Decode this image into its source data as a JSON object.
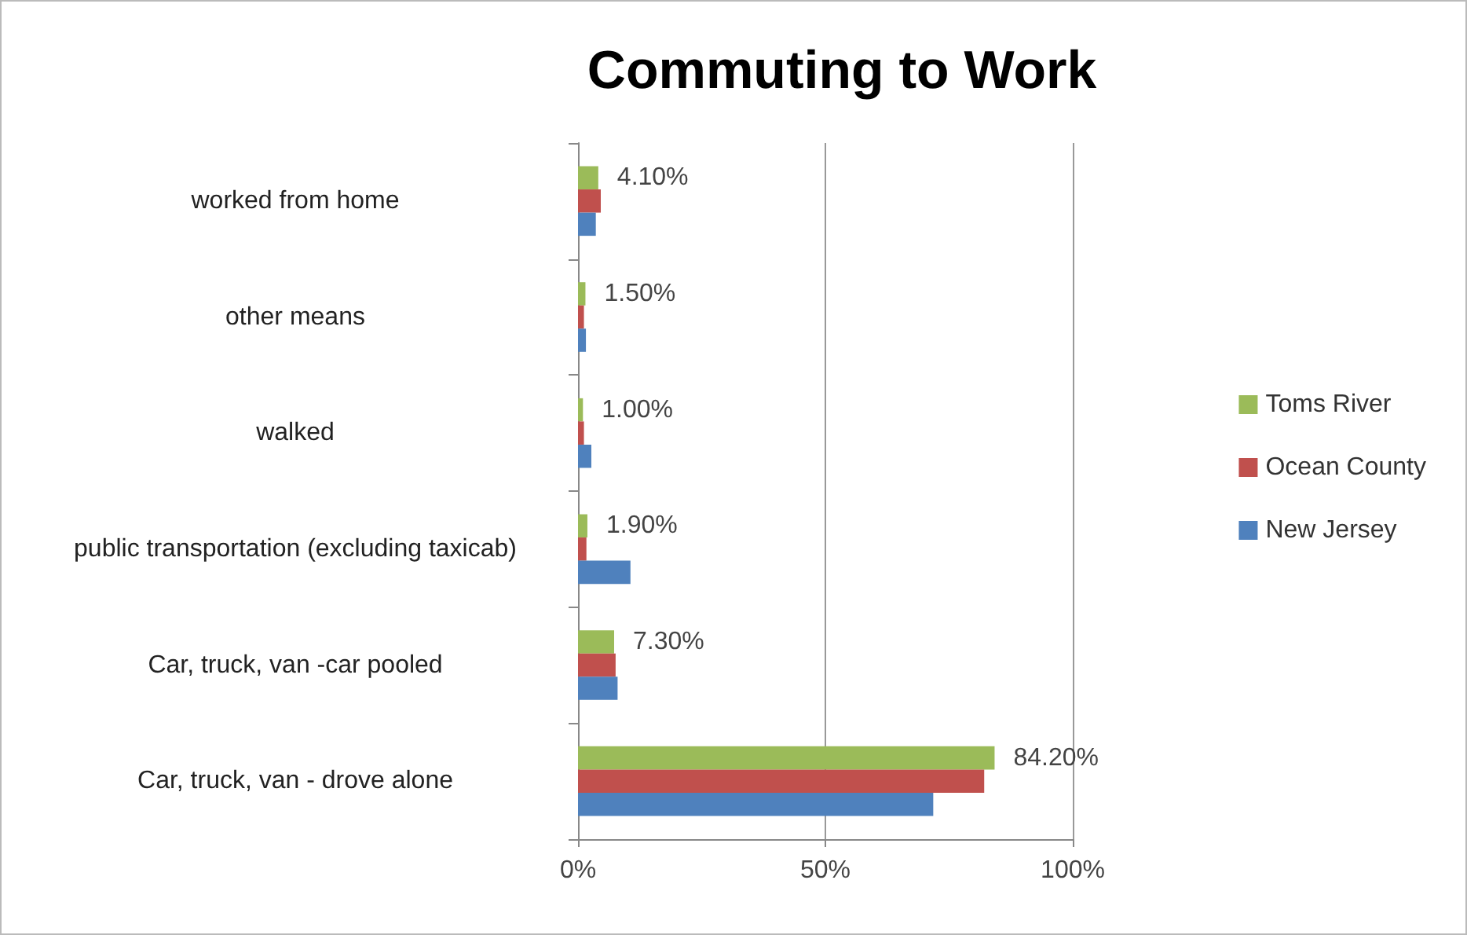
{
  "chart_data": {
    "type": "bar",
    "orientation": "horizontal",
    "title": "Commuting to Work",
    "categories": [
      "worked from home",
      "other means",
      "walked",
      "public transportation (excluding taxicab)",
      "Car, truck, van -car pooled",
      "Car, truck, van - drove alone"
    ],
    "series": [
      {
        "name": "Toms River",
        "color": "#9bbb59",
        "values": [
          4.1,
          1.5,
          1.0,
          1.9,
          7.3,
          84.2
        ],
        "value_labels": [
          "4.10%",
          "1.50%",
          "1.00%",
          "1.90%",
          "7.30%",
          "84.20%"
        ]
      },
      {
        "name": "Ocean County",
        "color": "#c0504d",
        "values": [
          4.6,
          1.2,
          1.2,
          1.7,
          7.6,
          82.1
        ]
      },
      {
        "name": "New Jersey",
        "color": "#4f81bd",
        "values": [
          3.6,
          1.6,
          2.7,
          10.6,
          8.0,
          71.8
        ]
      }
    ],
    "xlim": [
      0,
      100
    ],
    "xticks": [
      {
        "value": 0,
        "label": "0%"
      },
      {
        "value": 50,
        "label": "50%"
      },
      {
        "value": 100,
        "label": "100%"
      }
    ],
    "grid": "x",
    "legend": "right"
  }
}
